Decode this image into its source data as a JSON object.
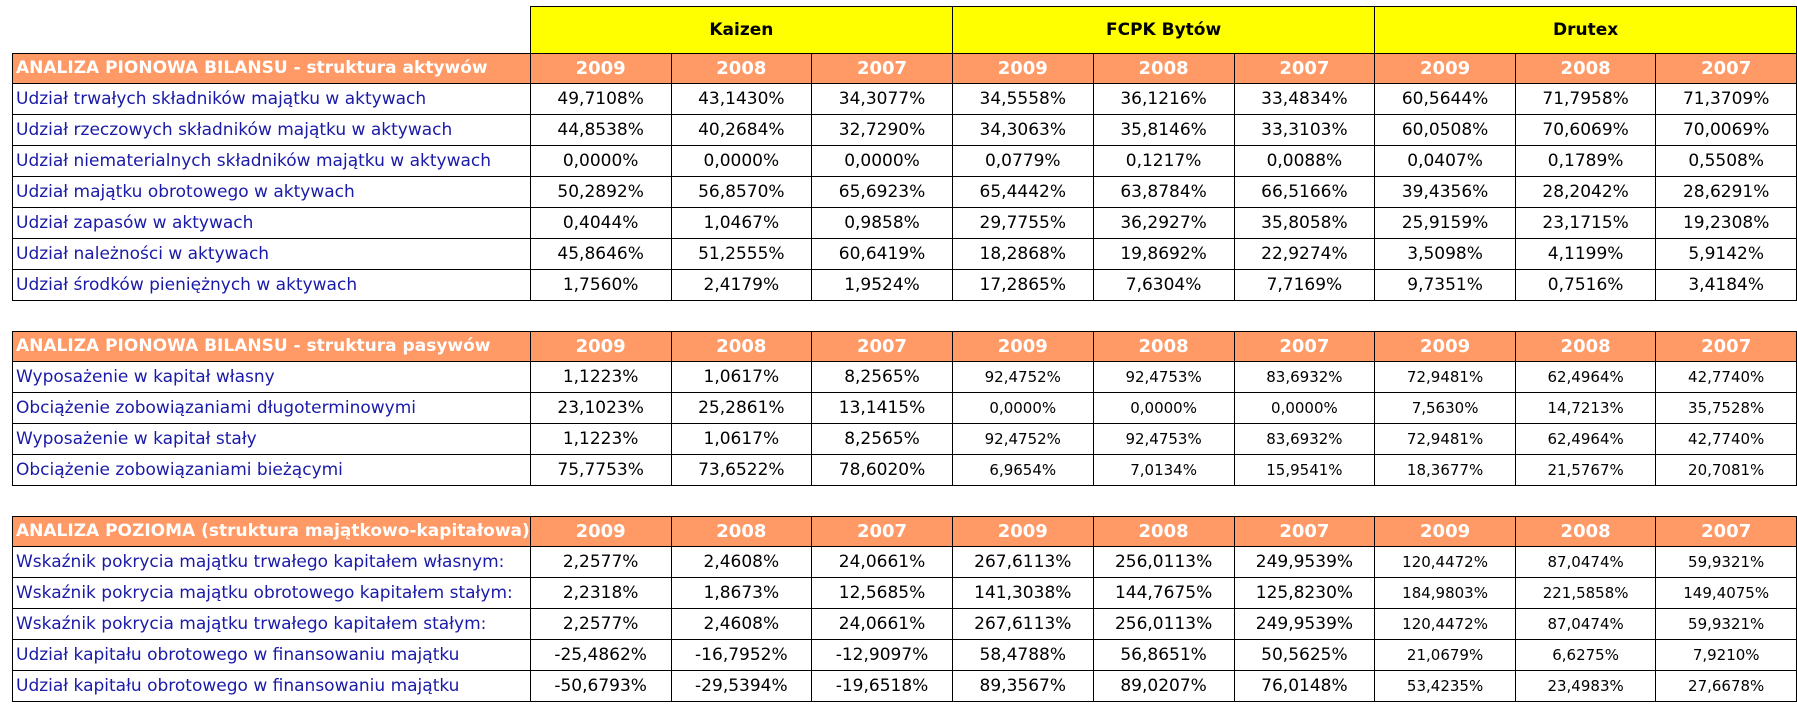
{
  "companies": [
    "Kaizen",
    "FCPK Bytów",
    "Drutex"
  ],
  "years": [
    "2009",
    "2008",
    "2007"
  ],
  "sections": [
    {
      "title": "ANALIZA PIONOWA BILANSU - struktura aktywów",
      "rows": [
        {
          "label": "Udział trwałych składników majątku w aktywach",
          "values": [
            "49,7108%",
            "43,1430%",
            "34,3077%",
            "34,5558%",
            "36,1216%",
            "33,4834%",
            "60,5644%",
            "71,7958%",
            "71,3709%"
          ]
        },
        {
          "label": "Udział rzeczowych składników majątku w aktywach",
          "values": [
            "44,8538%",
            "40,2684%",
            "32,7290%",
            "34,3063%",
            "35,8146%",
            "33,3103%",
            "60,0508%",
            "70,6069%",
            "70,0069%"
          ]
        },
        {
          "label": "Udział niematerialnych składników majątku w aktywach",
          "values": [
            "0,0000%",
            "0,0000%",
            "0,0000%",
            "0,0779%",
            "0,1217%",
            "0,0088%",
            "0,0407%",
            "0,1789%",
            "0,5508%"
          ]
        },
        {
          "label": "Udział majątku obrotowego w aktywach",
          "values": [
            "50,2892%",
            "56,8570%",
            "65,6923%",
            "65,4442%",
            "63,8784%",
            "66,5166%",
            "39,4356%",
            "28,2042%",
            "28,6291%"
          ]
        },
        {
          "label": "Udział zapasów w aktywach",
          "values": [
            "0,4044%",
            "1,0467%",
            "0,9858%",
            "29,7755%",
            "36,2927%",
            "35,8058%",
            "25,9159%",
            "23,1715%",
            "19,2308%"
          ]
        },
        {
          "label": "Udział należności w aktywach",
          "values": [
            "45,8646%",
            "51,2555%",
            "60,6419%",
            "18,2868%",
            "19,8692%",
            "22,9274%",
            "3,5098%",
            "4,1199%",
            "5,9142%"
          ]
        },
        {
          "label": "Udział środków pieniężnych w aktywach",
          "values": [
            "1,7560%",
            "2,4179%",
            "1,9524%",
            "17,2865%",
            "7,6304%",
            "7,7169%",
            "9,7351%",
            "0,7516%",
            "3,4184%"
          ]
        }
      ]
    },
    {
      "title": "ANALIZA PIONOWA BILANSU - struktura pasywów",
      "rows": [
        {
          "label": "Wyposażenie w kapitał własny",
          "values": [
            "1,1223%",
            "1,0617%",
            "8,2565%",
            "92,4752%",
            "92,4753%",
            "83,6932%",
            "72,9481%",
            "62,4964%",
            "42,7740%"
          ]
        },
        {
          "label": "Obciążenie zobowiązaniami długoterminowymi",
          "values": [
            "23,1023%",
            "25,2861%",
            "13,1415%",
            "0,0000%",
            "0,0000%",
            "0,0000%",
            "7,5630%",
            "14,7213%",
            "35,7528%"
          ]
        },
        {
          "label": "Wyposażenie w kapitał stały",
          "values": [
            "1,1223%",
            "1,0617%",
            "8,2565%",
            "92,4752%",
            "92,4753%",
            "83,6932%",
            "72,9481%",
            "62,4964%",
            "42,7740%"
          ]
        },
        {
          "label": "Obciążenie zobowiązaniami bieżącymi",
          "values": [
            "75,7753%",
            "73,6522%",
            "78,6020%",
            "6,9654%",
            "7,0134%",
            "15,9541%",
            "18,3677%",
            "21,5767%",
            "20,7081%"
          ]
        }
      ]
    },
    {
      "title": "ANALIZA POZIOMA (struktura majątkowo-kapitałowa)",
      "rows": [
        {
          "label": "Wskaźnik pokrycia majątku trwałego kapitałem własnym:",
          "values": [
            "2,2577%",
            "2,4608%",
            "24,0661%",
            "267,6113%",
            "256,0113%",
            "249,9539%",
            "120,4472%",
            "87,0474%",
            "59,9321%"
          ]
        },
        {
          "label": "Wskaźnik pokrycia majątku obrotowego kapitałem stałym:",
          "values": [
            "2,2318%",
            "1,8673%",
            "12,5685%",
            "141,3038%",
            "144,7675%",
            "125,8230%",
            "184,9803%",
            "221,5858%",
            "149,4075%"
          ]
        },
        {
          "label": "Wskaźnik pokrycia majątku trwałego kapitałem stałym:",
          "values": [
            "2,2577%",
            "2,4608%",
            "24,0661%",
            "267,6113%",
            "256,0113%",
            "249,9539%",
            "120,4472%",
            "87,0474%",
            "59,9321%"
          ]
        },
        {
          "label": "Udział kapitału obrotowego w finansowaniu majątku",
          "values": [
            "-25,4862%",
            "-16,7952%",
            "-12,9097%",
            "58,4788%",
            "56,8651%",
            "50,5625%",
            "21,0679%",
            "6,6275%",
            "7,9210%"
          ]
        },
        {
          "label": "Udział kapitału obrotowego w finansowaniu majątku",
          "values": [
            "-50,6793%",
            "-29,5394%",
            "-19,6518%",
            "89,3567%",
            "89,0207%",
            "76,0148%",
            "53,4235%",
            "23,4983%",
            "27,6678%"
          ]
        }
      ]
    }
  ]
}
